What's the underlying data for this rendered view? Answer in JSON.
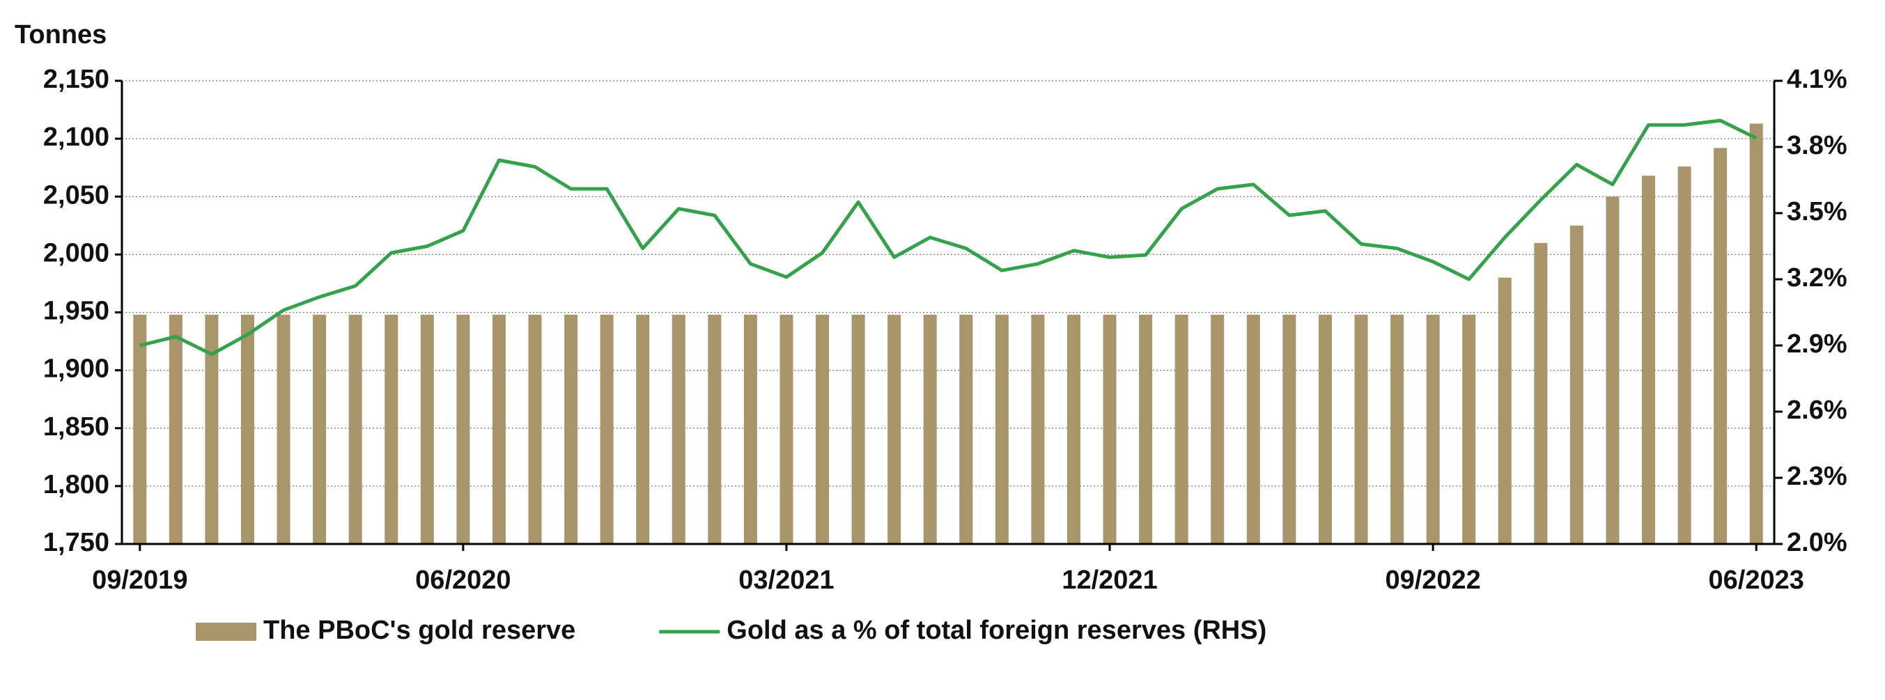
{
  "chart_data": {
    "type": "bar-line",
    "y_axis_label": "Tonnes",
    "categories": [
      "09/2019",
      null,
      null,
      null,
      null,
      null,
      null,
      null,
      null,
      "06/2020",
      null,
      null,
      null,
      null,
      null,
      null,
      null,
      null,
      "03/2021",
      null,
      null,
      null,
      null,
      null,
      null,
      null,
      null,
      "12/2021",
      null,
      null,
      null,
      null,
      null,
      null,
      null,
      null,
      "09/2022",
      null,
      null,
      null,
      null,
      null,
      null,
      null,
      null,
      "06/2023"
    ],
    "series": [
      {
        "name": "The PBoC's gold reserve",
        "type": "bar",
        "color": "#a8956a",
        "values": [
          1948,
          1948,
          1948,
          1948,
          1948,
          1948,
          1948,
          1948,
          1948,
          1948,
          1948,
          1948,
          1948,
          1948,
          1948,
          1948,
          1948,
          1948,
          1948,
          1948,
          1948,
          1948,
          1948,
          1948,
          1948,
          1948,
          1948,
          1948,
          1948,
          1948,
          1948,
          1948,
          1948,
          1948,
          1948,
          1948,
          1948,
          1948,
          1980,
          2010,
          2025,
          2050,
          2068,
          2076,
          2092,
          2113
        ]
      },
      {
        "name": "Gold as a % of total foreign reserves (RHS)",
        "type": "line",
        "axis": "y2",
        "color": "#34a24a",
        "values": [
          2.9,
          2.94,
          2.86,
          2.95,
          3.06,
          3.12,
          3.17,
          3.32,
          3.35,
          3.42,
          3.74,
          3.71,
          3.61,
          3.61,
          3.34,
          3.52,
          3.49,
          3.27,
          3.21,
          3.32,
          3.55,
          3.3,
          3.39,
          3.34,
          3.24,
          3.27,
          3.33,
          3.3,
          3.31,
          3.52,
          3.61,
          3.63,
          3.49,
          3.51,
          3.36,
          3.34,
          3.28,
          3.2,
          3.39,
          3.56,
          3.72,
          3.63,
          3.9,
          3.9,
          3.92,
          3.84
        ]
      }
    ],
    "ylim": [
      1750,
      2150
    ],
    "yticks": [
      {
        "value": 1750,
        "label": "1,750"
      },
      {
        "value": 1800,
        "label": "1,800"
      },
      {
        "value": 1850,
        "label": "1,850"
      },
      {
        "value": 1900,
        "label": "1,900"
      },
      {
        "value": 1950,
        "label": "1,950"
      },
      {
        "value": 2000,
        "label": "2,000"
      },
      {
        "value": 2050,
        "label": "2,050"
      },
      {
        "value": 2100,
        "label": "2,100"
      },
      {
        "value": 2150,
        "label": "2,150"
      }
    ],
    "y2lim": [
      2.0,
      4.1
    ],
    "y2ticks": [
      {
        "value": 2.0,
        "label": "2.0%"
      },
      {
        "value": 2.3,
        "label": "2.3%"
      },
      {
        "value": 2.6,
        "label": "2.6%"
      },
      {
        "value": 2.9,
        "label": "2.9%"
      },
      {
        "value": 3.2,
        "label": "3.2%"
      },
      {
        "value": 3.5,
        "label": "3.5%"
      },
      {
        "value": 3.8,
        "label": "3.8%"
      },
      {
        "value": 4.1,
        "label": "4.1%"
      }
    ],
    "grid": true
  }
}
